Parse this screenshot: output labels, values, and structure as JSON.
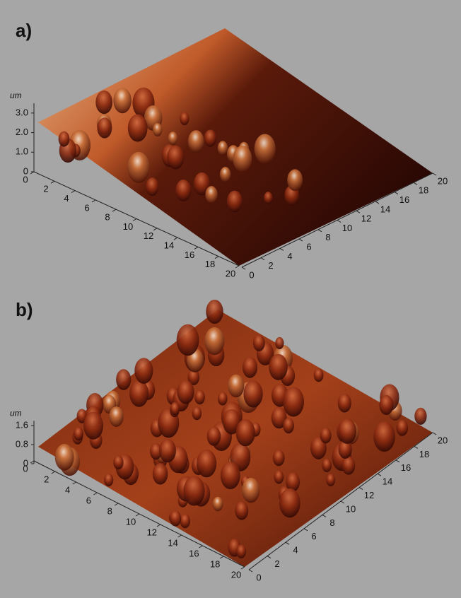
{
  "chart_data": [
    {
      "type": "surface",
      "panel_label": "a)",
      "zlabel": "um",
      "xlim": [
        0,
        20
      ],
      "xticks": [
        0,
        2,
        4,
        6,
        8,
        10,
        12,
        14,
        16,
        18,
        20
      ],
      "ylim": [
        0,
        20
      ],
      "yticks": [
        0,
        2,
        4,
        6,
        8,
        10,
        12,
        14,
        16,
        18,
        20
      ],
      "zlim": [
        0,
        3.5
      ],
      "zticks": [
        0,
        {
          "value": 1,
          "label": "1.0"
        },
        {
          "value": 2,
          "label": "2.0"
        },
        {
          "value": 3,
          "label": "3.0"
        }
      ]
    },
    {
      "type": "surface",
      "panel_label": "b)",
      "zlabel": "um",
      "xlim": [
        0,
        20
      ],
      "xticks": [
        0,
        2,
        4,
        6,
        8,
        10,
        12,
        14,
        16,
        18,
        20
      ],
      "ylim": [
        0,
        20
      ],
      "yticks": [
        0,
        2,
        4,
        6,
        8,
        10,
        12,
        14,
        16,
        18,
        20
      ],
      "zlim": [
        0,
        1.8
      ],
      "zticks": [
        0,
        0.8,
        1.6
      ]
    }
  ]
}
